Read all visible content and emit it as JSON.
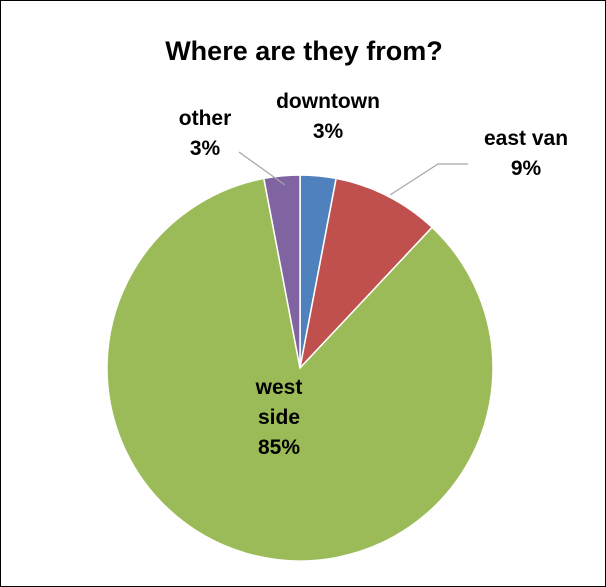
{
  "chart_data": {
    "type": "pie",
    "title": "Where are they from?",
    "slices": [
      {
        "label": "downtown",
        "value": 3,
        "value_label": "3%",
        "color": "#4f81bd"
      },
      {
        "label": "east van",
        "value": 9,
        "value_label": "9%",
        "color": "#c0504d"
      },
      {
        "label": "west side",
        "value": 85,
        "value_label": "85%",
        "color": "#9bbb59"
      },
      {
        "label": "other",
        "value": 3,
        "value_label": "3%",
        "color": "#8064a2"
      }
    ],
    "legend": "none",
    "data_labels": "outside with leader lines (inside for largest slice)"
  }
}
